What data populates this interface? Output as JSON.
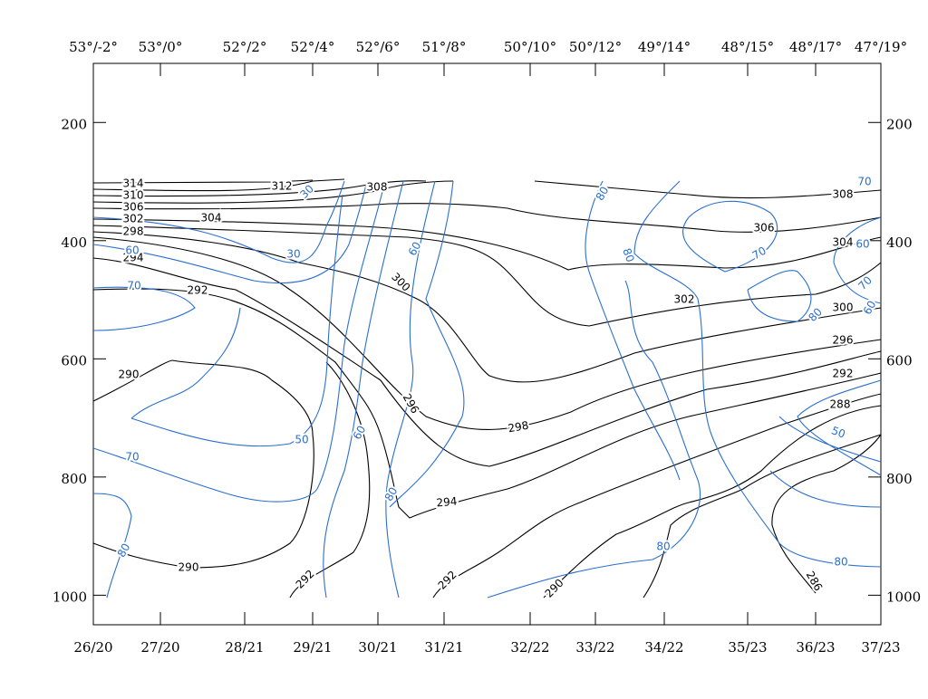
{
  "chart_data": {
    "type": "contour",
    "categories": [
      "26/20",
      "27/20",
      "28/21",
      "29/21",
      "30/21",
      "31/21",
      "32/22",
      "33/22",
      "34/22",
      "35/23",
      "36/23",
      "37/23"
    ],
    "top_labels": [
      "53°/-2°",
      "53°/0°",
      "52°/2°",
      "52°/4°",
      "52°/6°",
      "51°/8°",
      "50°/10°",
      "50°/12°",
      "49°/14°",
      "48°/15°",
      "48°/17°",
      "47°/19°"
    ],
    "ylim": [
      1050,
      100
    ],
    "yticks": [
      200,
      400,
      600,
      800,
      1000
    ],
    "theta_color": "#000000",
    "rh_color": "#2a6fd0",
    "theta_labels": [
      314,
      312,
      310,
      308,
      306,
      304,
      302,
      298,
      294,
      292,
      290,
      300,
      296,
      298,
      294,
      290,
      292,
      292,
      290,
      308,
      306,
      304,
      302,
      300,
      296,
      292,
      288,
      286
    ],
    "rh_labels": [
      70,
      30,
      30,
      60,
      70,
      60,
      80,
      80,
      70,
      60,
      70,
      80,
      60,
      50,
      60,
      80,
      50,
      70,
      80,
      80,
      80
    ]
  }
}
